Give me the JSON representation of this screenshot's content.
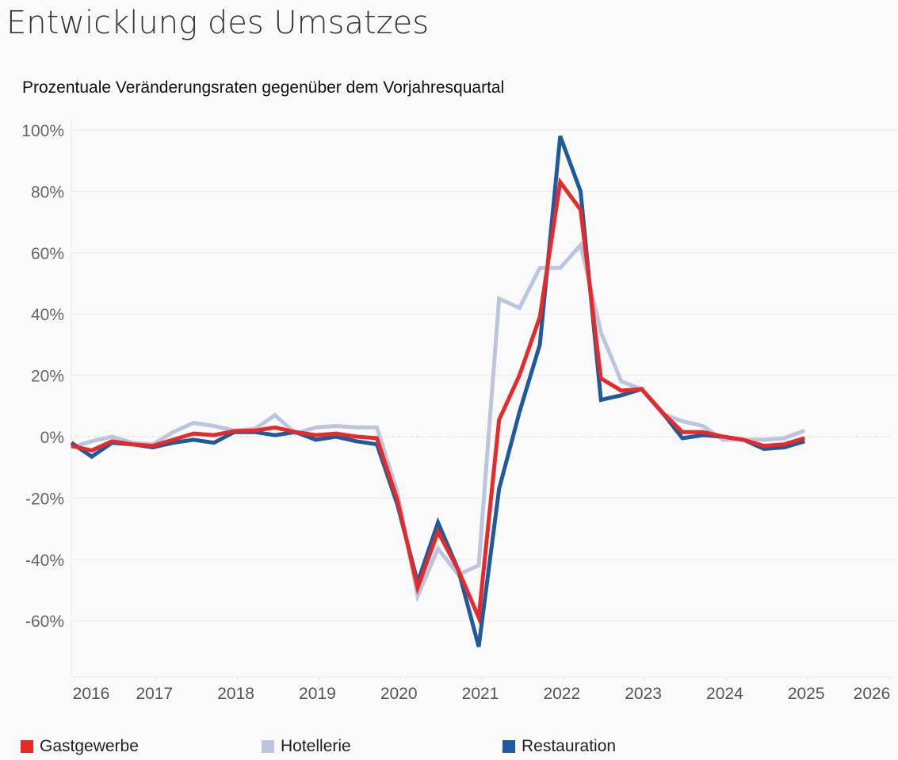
{
  "page": {
    "title": "Entwicklung des Umsatzes",
    "subtitle": "Prozentuale Veränderungsraten gegenüber dem Vorjahresquartal"
  },
  "chart_data": {
    "type": "line",
    "title": "Entwicklung des Umsatzes",
    "subtitle": "Prozentuale Veränderungsraten gegenüber dem Vorjahresquartal",
    "xlabel": "",
    "ylabel": "",
    "x": [
      "2016Q1",
      "2016Q2",
      "2016Q3",
      "2016Q4",
      "2017Q1",
      "2017Q2",
      "2017Q3",
      "2017Q4",
      "2018Q1",
      "2018Q2",
      "2018Q3",
      "2018Q4",
      "2019Q1",
      "2019Q2",
      "2019Q3",
      "2019Q4",
      "2020Q1",
      "2020Q2",
      "2020Q3",
      "2020Q4",
      "2021Q1",
      "2021Q2",
      "2021Q3",
      "2021Q4",
      "2022Q1",
      "2022Q2",
      "2022Q3",
      "2022Q4",
      "2023Q1",
      "2023Q2",
      "2023Q3",
      "2023Q4",
      "2024Q1",
      "2024Q2",
      "2024Q3",
      "2024Q4",
      "2025Q1"
    ],
    "x_tick_labels": [
      "2016",
      "2017",
      "2018",
      "2019",
      "2020",
      "2021",
      "2022",
      "2023",
      "2024",
      "2025",
      "2026"
    ],
    "y_tick_labels": [
      "-60%",
      "-40%",
      "-20%",
      "0%",
      "20%",
      "40%",
      "60%",
      "80%",
      "100%"
    ],
    "y_ticks": [
      -60,
      -40,
      -20,
      0,
      20,
      40,
      60,
      80,
      100
    ],
    "ylim": [
      -78,
      104
    ],
    "grid": true,
    "legend_position": "bottom",
    "series": [
      {
        "name": "Hotellerie",
        "color": "#bcc5df",
        "values": [
          -3.5,
          -1.5,
          0,
          -2,
          -2.5,
          1.5,
          4.5,
          3.5,
          2,
          2.5,
          7,
          1,
          3,
          3.5,
          3,
          3,
          -18,
          -52,
          -36.5,
          -45,
          -42,
          45,
          42,
          55,
          55,
          62.5,
          34,
          18,
          15.5,
          7.5,
          5,
          3.5,
          -1,
          -1,
          -1,
          -0.5,
          2
        ]
      },
      {
        "name": "Restauration",
        "color": "#1f5a9c",
        "values": [
          -2,
          -6.5,
          -2,
          -2.5,
          -3.5,
          -2,
          -1,
          -2,
          1.5,
          1.5,
          0.5,
          1.5,
          -1,
          0,
          -1.5,
          -2.5,
          -22,
          -47.5,
          -28,
          -43.5,
          -68.5,
          -17,
          8,
          30,
          98,
          80,
          12,
          13.5,
          15.5,
          8,
          -0.5,
          0.5,
          0,
          -1,
          -4,
          -3.5,
          -1.5
        ]
      },
      {
        "name": "Gastgewerbe",
        "color": "#e8292a",
        "values": [
          -3,
          -4.5,
          -1.5,
          -2.5,
          -3,
          -1,
          1,
          0.5,
          1.8,
          2,
          3,
          1.5,
          0.5,
          1,
          0,
          -0.5,
          -20.5,
          -49.3,
          -31,
          -43.5,
          -59,
          5.5,
          20,
          39,
          83,
          74,
          19,
          15,
          15.5,
          8,
          1.5,
          1.5,
          0,
          -1,
          -3,
          -2.5,
          -0.5
        ]
      }
    ],
    "legend": [
      {
        "name": "Gastgewerbe",
        "color": "#e8292a"
      },
      {
        "name": "Hotellerie",
        "color": "#bcc5df"
      },
      {
        "name": "Restauration",
        "color": "#1f5a9c"
      }
    ]
  }
}
